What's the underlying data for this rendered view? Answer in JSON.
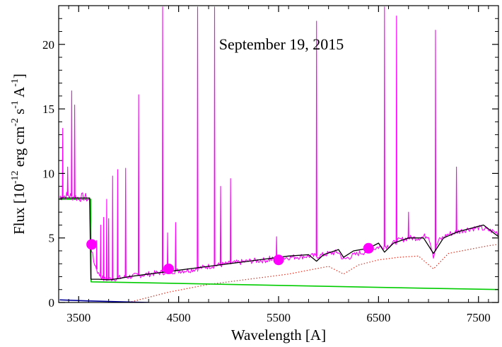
{
  "chart_data": {
    "type": "line",
    "title": "",
    "annotation": "September 19, 2015",
    "xlabel": "Wavelength [A]",
    "ylabel": {
      "prefix": "Flux [10",
      "exp1": "-12",
      "mid1": " erg cm",
      "exp2": "-2",
      "mid2": " s",
      "exp3": "-1",
      "mid3": " A",
      "exp4": "-1",
      "suffix": "]"
    },
    "xlim": [
      3300,
      7700
    ],
    "ylim": [
      0,
      23
    ],
    "xticks": [
      3500,
      4500,
      5500,
      6500,
      7500
    ],
    "xtick_labels": [
      "3500",
      "4500",
      "5500",
      "6500",
      "7500"
    ],
    "yticks": [
      0,
      5,
      10,
      15,
      20
    ],
    "ytick_labels": [
      "0",
      "5",
      "10",
      "15",
      "20"
    ],
    "colors": {
      "observed": "#ff00ff",
      "model_total": "#000000",
      "disk_component": "#00cc00",
      "stellar_component": "#e03020",
      "photometry": "#ff00ff",
      "blue_component": "#000099"
    },
    "series": [
      {
        "key": "observed",
        "style": "line",
        "continuum": [
          [
            3310,
            8.2
          ],
          [
            3400,
            8.3
          ],
          [
            3500,
            8.1
          ],
          [
            3560,
            8.2
          ],
          [
            3610,
            7.9
          ],
          [
            3620,
            4.5
          ],
          [
            3650,
            3.2
          ],
          [
            3700,
            2.2
          ],
          [
            3750,
            1.8
          ],
          [
            3800,
            1.8
          ],
          [
            3900,
            1.9
          ],
          [
            4000,
            2.0
          ],
          [
            4200,
            2.2
          ],
          [
            4400,
            2.4
          ],
          [
            4600,
            2.5
          ],
          [
            4800,
            2.8
          ],
          [
            5000,
            3.0
          ],
          [
            5200,
            3.2
          ],
          [
            5400,
            3.3
          ],
          [
            5600,
            3.5
          ],
          [
            5800,
            3.6
          ],
          [
            5900,
            3.6
          ],
          [
            6000,
            3.8
          ],
          [
            6100,
            3.9
          ],
          [
            6150,
            3.3
          ],
          [
            6200,
            3.5
          ],
          [
            6300,
            3.8
          ],
          [
            6400,
            4.0
          ],
          [
            6500,
            4.3
          ],
          [
            6600,
            4.4
          ],
          [
            6700,
            4.8
          ],
          [
            6800,
            5.0
          ],
          [
            6900,
            5.0
          ],
          [
            7000,
            5.2
          ],
          [
            7050,
            3.6
          ],
          [
            7100,
            4.8
          ],
          [
            7200,
            5.3
          ],
          [
            7300,
            5.5
          ],
          [
            7400,
            5.7
          ],
          [
            7500,
            5.8
          ],
          [
            7600,
            5.6
          ],
          [
            7700,
            5.4
          ]
        ],
        "emission_lines": [
          [
            3340,
            13.5
          ],
          [
            3390,
            10.5
          ],
          [
            3430,
            16.4
          ],
          [
            3460,
            15.3
          ],
          [
            3680,
            4.8
          ],
          [
            3720,
            6.0
          ],
          [
            3750,
            6.6
          ],
          [
            3780,
            8.0
          ],
          [
            3800,
            6.5
          ],
          [
            3840,
            9.8
          ],
          [
            3890,
            10.3
          ],
          [
            3970,
            10.4
          ],
          [
            4100,
            16.1
          ],
          [
            4340,
            22.9
          ],
          [
            4390,
            5.4
          ],
          [
            4470,
            6.2
          ],
          [
            4690,
            22.9
          ],
          [
            4860,
            22.9
          ],
          [
            4920,
            9.0
          ],
          [
            5020,
            9.6
          ],
          [
            5410,
            3.6
          ],
          [
            5480,
            5.1
          ],
          [
            5880,
            21.8
          ],
          [
            6080,
            3.9
          ],
          [
            6560,
            22.9
          ],
          [
            6680,
            22.2
          ],
          [
            6800,
            7.0
          ],
          [
            7070,
            21.1
          ],
          [
            7280,
            10.5
          ]
        ]
      },
      {
        "key": "model_total",
        "style": "line",
        "points": [
          [
            3310,
            8.1
          ],
          [
            3610,
            8.1
          ],
          [
            3622,
            1.8
          ],
          [
            3700,
            1.8
          ],
          [
            3800,
            1.75
          ],
          [
            3900,
            1.85
          ],
          [
            4000,
            2.0
          ],
          [
            4200,
            2.2
          ],
          [
            4400,
            2.4
          ],
          [
            4600,
            2.6
          ],
          [
            4800,
            2.8
          ],
          [
            5000,
            3.0
          ],
          [
            5200,
            3.2
          ],
          [
            5400,
            3.4
          ],
          [
            5600,
            3.6
          ],
          [
            5800,
            3.7
          ],
          [
            5880,
            3.2
          ],
          [
            5950,
            3.7
          ],
          [
            6100,
            4.1
          ],
          [
            6150,
            3.5
          ],
          [
            6250,
            4.0
          ],
          [
            6400,
            4.2
          ],
          [
            6500,
            4.6
          ],
          [
            6560,
            3.9
          ],
          [
            6650,
            4.6
          ],
          [
            6800,
            5.0
          ],
          [
            6950,
            5.0
          ],
          [
            7050,
            3.8
          ],
          [
            7150,
            5.0
          ],
          [
            7300,
            5.5
          ],
          [
            7450,
            5.8
          ],
          [
            7550,
            6.0
          ],
          [
            7650,
            5.4
          ],
          [
            7700,
            5.1
          ]
        ]
      },
      {
        "key": "disk_component",
        "style": "line",
        "points": [
          [
            3310,
            8.0
          ],
          [
            3620,
            8.0
          ],
          [
            3625,
            1.6
          ],
          [
            4000,
            1.55
          ],
          [
            5000,
            1.4
          ],
          [
            6000,
            1.25
          ],
          [
            7000,
            1.1
          ],
          [
            7700,
            1.0
          ]
        ]
      },
      {
        "key": "stellar_component",
        "style": "dotted",
        "points": [
          [
            4000,
            0.0
          ],
          [
            4200,
            0.4
          ],
          [
            4400,
            0.8
          ],
          [
            4600,
            1.1
          ],
          [
            4800,
            1.4
          ],
          [
            5000,
            1.6
          ],
          [
            5200,
            1.8
          ],
          [
            5400,
            2.0
          ],
          [
            5600,
            2.2
          ],
          [
            5800,
            2.5
          ],
          [
            6000,
            2.8
          ],
          [
            6150,
            2.2
          ],
          [
            6300,
            2.9
          ],
          [
            6500,
            3.3
          ],
          [
            6700,
            3.5
          ],
          [
            6900,
            3.6
          ],
          [
            7050,
            2.6
          ],
          [
            7200,
            3.8
          ],
          [
            7400,
            4.1
          ],
          [
            7600,
            4.4
          ],
          [
            7700,
            4.5
          ]
        ]
      },
      {
        "key": "blue_component",
        "style": "line",
        "points": [
          [
            3310,
            0.2
          ],
          [
            3600,
            0.12
          ],
          [
            4000,
            0.04
          ],
          [
            4200,
            0.0
          ]
        ]
      },
      {
        "key": "photometry",
        "style": "markers",
        "points": [
          [
            3630,
            4.5
          ],
          [
            4400,
            2.6
          ],
          [
            5500,
            3.3
          ],
          [
            6400,
            4.2
          ]
        ]
      }
    ]
  }
}
